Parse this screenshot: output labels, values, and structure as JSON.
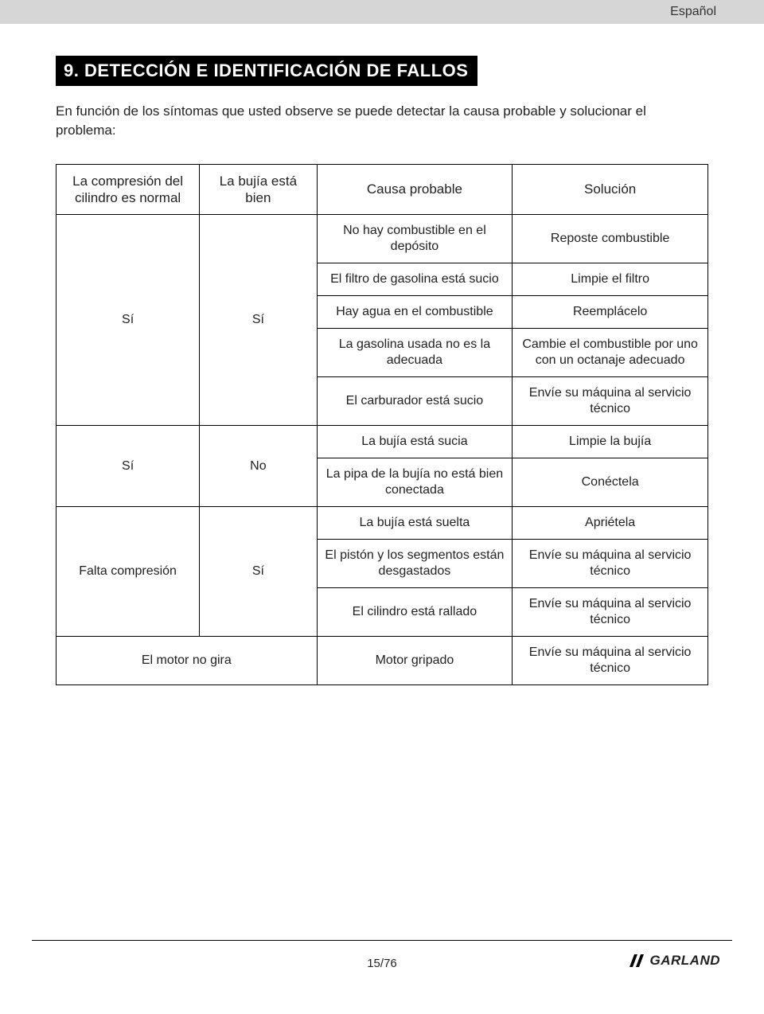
{
  "header": {
    "language": "Español"
  },
  "section": {
    "number": "9.",
    "title": "DETECCIÓN E IDENTIFICACIÓN DE FALLOS",
    "intro": "En función de los síntomas que usted observe se puede detectar la causa probable y solucionar el problema:"
  },
  "table": {
    "type": "table",
    "border_color": "#000000",
    "background_color": "#ffffff",
    "text_color": "#222222",
    "font_size_pt": 12,
    "column_widths_pct": [
      22,
      18,
      30,
      30
    ],
    "columns": [
      "La compresión del cilindro es normal",
      "La bujía está bien",
      "Causa probable",
      "Solución"
    ],
    "groups": [
      {
        "col1": "Sí",
        "col2": "Sí",
        "rows": [
          {
            "cause": "No hay combustible en el depósito",
            "solution": "Reposte combustible"
          },
          {
            "cause": "El filtro de gasolina está sucio",
            "solution": "Limpie el filtro"
          },
          {
            "cause": "Hay agua en el combustible",
            "solution": "Reemplácelo"
          },
          {
            "cause": "La gasolina usada no es la adecuada",
            "solution": "Cambie el combustible por uno con un octanaje adecuado"
          },
          {
            "cause": "El carburador está sucio",
            "solution": "Envíe su máquina al servicio técnico"
          }
        ]
      },
      {
        "col1": "Sí",
        "col2": "No",
        "rows": [
          {
            "cause": "La bujía está sucia",
            "solution": "Limpie la bujía"
          },
          {
            "cause": "La pipa de la bujía no está bien conectada",
            "solution": "Conéctela"
          }
        ]
      },
      {
        "col1": "Falta compresión",
        "col2": "Sí",
        "rows": [
          {
            "cause": "La bujía está suelta",
            "solution": "Apriétela"
          },
          {
            "cause": "El pistón y los segmentos están desgastados",
            "solution": "Envíe su máquina al servicio técnico"
          },
          {
            "cause": "El cilindro está rallado",
            "solution": "Envíe su máquina al servicio técnico"
          }
        ]
      },
      {
        "col1": "El motor no gira",
        "col2": "",
        "rows": [
          {
            "cause": "Motor gripado",
            "solution": "Envíe su máquina al servicio técnico"
          }
        ]
      }
    ]
  },
  "footer": {
    "page": "15/76",
    "brand": "GARLAND"
  }
}
